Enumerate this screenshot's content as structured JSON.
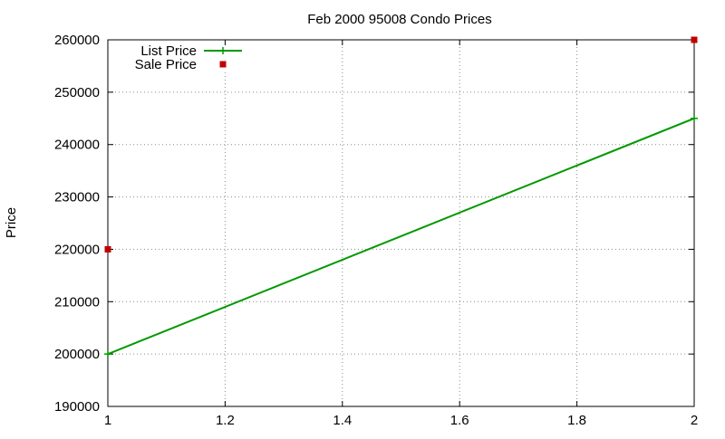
{
  "chart_data": {
    "type": "line",
    "title": "Feb 2000 95008 Condo Prices",
    "xlabel": "",
    "ylabel": "Price",
    "xlim": [
      1,
      2
    ],
    "ylim": [
      190000,
      260000
    ],
    "x_ticks": [
      1,
      1.2,
      1.4,
      1.6,
      1.8,
      2
    ],
    "x_tick_labels": [
      "1",
      "1.2",
      "1.4",
      "1.6",
      "1.8",
      "2"
    ],
    "y_ticks": [
      190000,
      200000,
      210000,
      220000,
      230000,
      240000,
      250000,
      260000
    ],
    "y_tick_labels": [
      "190000",
      "200000",
      "210000",
      "220000",
      "230000",
      "240000",
      "250000",
      "260000"
    ],
    "grid": true,
    "legend_position": "top-left",
    "series": [
      {
        "name": "List Price",
        "style": "linespoints",
        "marker": "plus",
        "color": "#009900",
        "x": [
          1,
          2
        ],
        "y": [
          200000,
          245000
        ]
      },
      {
        "name": "Sale Price",
        "style": "points",
        "marker": "square",
        "color": "#c00000",
        "x": [
          1,
          2
        ],
        "y": [
          220000,
          260000
        ]
      }
    ]
  }
}
